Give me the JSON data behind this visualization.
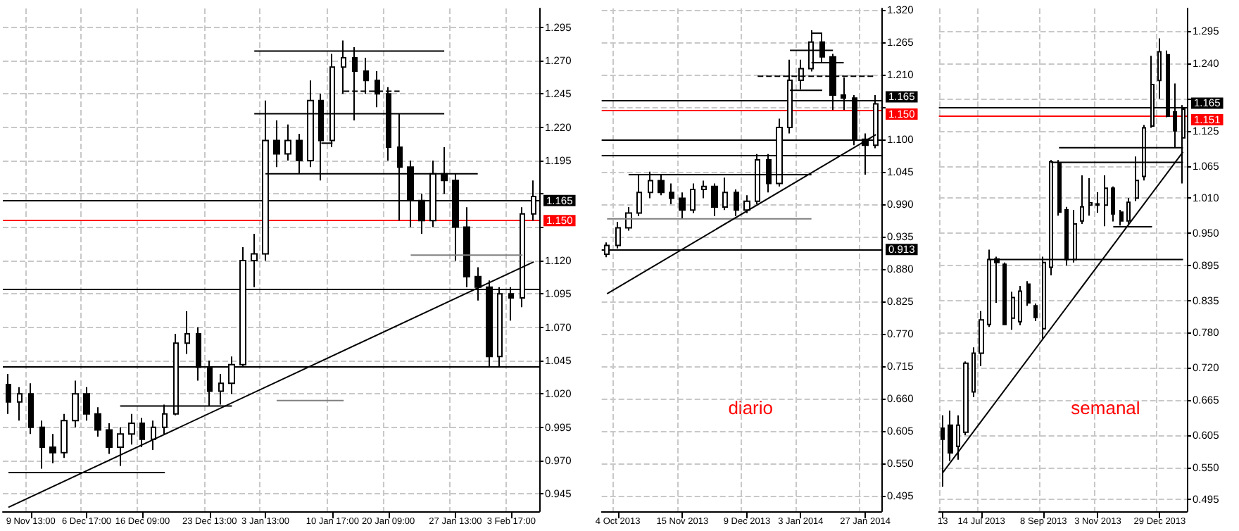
{
  "chart_data": [
    {
      "type": "candlestick",
      "categories": [
        null,
        null,
        "9 Nov 13:00",
        null,
        null,
        null,
        null,
        "6 Dec 17:00",
        null,
        null,
        null,
        null,
        "16 Dec 09:00",
        null,
        null,
        null,
        null,
        null,
        "23 Dec 13:00",
        null,
        null,
        null,
        null,
        "3 Jan 13:00",
        null,
        null,
        null,
        null,
        null,
        "10 Jan 17:00",
        null,
        null,
        null,
        null,
        "20 Jan 09:00",
        null,
        null,
        null,
        null,
        null,
        "27 Jan 13:00",
        null,
        null,
        null,
        null,
        "3 Feb 17:00",
        null,
        null
      ],
      "ohlc": [
        [
          1.027,
          1.035,
          1.005,
          1.014
        ],
        [
          1.014,
          1.025,
          1.0,
          1.02
        ],
        [
          1.02,
          1.028,
          0.99,
          0.995
        ],
        [
          0.995,
          1.0,
          0.964,
          0.98
        ],
        [
          0.98,
          0.99,
          0.968,
          0.976
        ],
        [
          0.976,
          1.005,
          0.972,
          1.0
        ],
        [
          1.0,
          1.03,
          0.995,
          1.02
        ],
        [
          1.02,
          1.025,
          1.0,
          1.005
        ],
        [
          1.005,
          1.01,
          0.988,
          0.993
        ],
        [
          0.993,
          0.998,
          0.975,
          0.98
        ],
        [
          0.98,
          0.995,
          0.966,
          0.99
        ],
        [
          0.99,
          1.005,
          0.982,
          0.998
        ],
        [
          0.998,
          1.002,
          0.98,
          0.986
        ],
        [
          0.986,
          1.0,
          0.978,
          0.995
        ],
        [
          0.995,
          1.012,
          0.99,
          1.005
        ],
        [
          1.005,
          1.065,
          1.004,
          1.058
        ],
        [
          1.058,
          1.082,
          1.05,
          1.065
        ],
        [
          1.065,
          1.07,
          1.03,
          1.04
        ],
        [
          1.04,
          1.045,
          1.011,
          1.022
        ],
        [
          1.022,
          1.035,
          1.012,
          1.028
        ],
        [
          1.028,
          1.048,
          1.02,
          1.042
        ],
        [
          1.042,
          1.13,
          1.04,
          1.12
        ],
        [
          1.12,
          1.14,
          1.1,
          1.125
        ],
        [
          1.125,
          1.24,
          1.12,
          1.21
        ],
        [
          1.21,
          1.225,
          1.19,
          1.2
        ],
        [
          1.2,
          1.222,
          1.195,
          1.21
        ],
        [
          1.21,
          1.215,
          1.185,
          1.195
        ],
        [
          1.195,
          1.255,
          1.19,
          1.24
        ],
        [
          1.24,
          1.245,
          1.18,
          1.21
        ],
        [
          1.21,
          1.275,
          1.205,
          1.265
        ],
        [
          1.265,
          1.285,
          1.245,
          1.272
        ],
        [
          1.272,
          1.28,
          1.225,
          1.262
        ],
        [
          1.262,
          1.272,
          1.245,
          1.255
        ],
        [
          1.255,
          1.262,
          1.235,
          1.245
        ],
        [
          1.245,
          1.25,
          1.195,
          1.205
        ],
        [
          1.205,
          1.23,
          1.15,
          1.19
        ],
        [
          1.19,
          1.195,
          1.145,
          1.165
        ],
        [
          1.165,
          1.17,
          1.14,
          1.15
        ],
        [
          1.15,
          1.195,
          1.145,
          1.185
        ],
        [
          1.185,
          1.205,
          1.17,
          1.18
        ],
        [
          1.18,
          1.185,
          1.12,
          1.145
        ],
        [
          1.145,
          1.16,
          1.1,
          1.108
        ],
        [
          1.108,
          1.115,
          1.09,
          1.1
        ],
        [
          1.1,
          1.105,
          1.04,
          1.048
        ],
        [
          1.048,
          1.1,
          1.04,
          1.095
        ],
        [
          1.095,
          1.1,
          1.075,
          1.092
        ],
        [
          1.092,
          1.16,
          1.085,
          1.155
        ],
        [
          1.155,
          1.18,
          1.15,
          1.168
        ]
      ],
      "series": [
        {
          "type": "line",
          "color": "#000000",
          "values": [
            null,
            null,
            null,
            null,
            null,
            null,
            null,
            null,
            null,
            null,
            null,
            null,
            null,
            null,
            null,
            null,
            null,
            null,
            null,
            null,
            null,
            null,
            1.277,
            1.277,
            1.277,
            1.277,
            1.277,
            1.277,
            1.277,
            1.277,
            1.277,
            1.277,
            1.277,
            1.277,
            1.277,
            1.277,
            1.277,
            1.277,
            1.277,
            1.277,
            null,
            null,
            null,
            null,
            null,
            null,
            null,
            null
          ]
        },
        {
          "type": "line",
          "color": "#000000",
          "values": [
            null,
            null,
            null,
            null,
            null,
            null,
            null,
            null,
            null,
            null,
            null,
            null,
            null,
            null,
            null,
            null,
            null,
            null,
            null,
            null,
            null,
            null,
            1.23,
            1.23,
            1.23,
            1.23,
            1.23,
            1.23,
            1.23,
            1.23,
            1.23,
            1.23,
            1.23,
            1.23,
            1.23,
            1.23,
            1.23,
            1.23,
            1.23,
            1.23,
            null,
            null,
            null,
            null,
            null,
            null,
            null,
            null
          ]
        },
        {
          "type": "line",
          "color": "#000000",
          "values": [
            null,
            null,
            null,
            null,
            null,
            null,
            null,
            null,
            null,
            null,
            null,
            null,
            null,
            null,
            null,
            null,
            null,
            null,
            null,
            null,
            null,
            null,
            null,
            1.185,
            1.185,
            1.185,
            1.185,
            1.185,
            1.185,
            1.185,
            1.185,
            1.185,
            1.185,
            1.185,
            1.185,
            1.185,
            1.185,
            1.185,
            1.185,
            1.185,
            1.185,
            1.185,
            1.185,
            null,
            null,
            null,
            null,
            null
          ]
        },
        {
          "type": "line",
          "color": "#808080",
          "values": [
            null,
            null,
            null,
            null,
            null,
            null,
            null,
            null,
            null,
            null,
            null,
            null,
            null,
            null,
            null,
            null,
            null,
            null,
            null,
            null,
            null,
            null,
            null,
            null,
            null,
            null,
            null,
            null,
            null,
            null,
            null,
            null,
            null,
            null,
            null,
            null,
            1.124,
            1.124,
            1.124,
            1.124,
            1.124,
            1.124,
            1.124,
            1.124,
            1.124,
            1.124,
            1.124,
            null
          ]
        },
        {
          "type": "line",
          "color": "#000000",
          "values": [
            null,
            null,
            null,
            null,
            null,
            null,
            null,
            null,
            null,
            null,
            1.011,
            1.011,
            1.011,
            1.011,
            1.011,
            1.011,
            1.011,
            1.011,
            1.011,
            1.011,
            1.011,
            null,
            null,
            null,
            null,
            null,
            null,
            null,
            null,
            null,
            null,
            null,
            null,
            null,
            null,
            null,
            null,
            null,
            null,
            null,
            null,
            null,
            null,
            null,
            null,
            null,
            null,
            null
          ]
        },
        {
          "type": "line",
          "color": "#000000",
          "values": [
            0.961,
            0.961,
            0.961,
            0.961,
            0.961,
            0.961,
            0.961,
            0.961,
            0.961,
            0.961,
            0.961,
            0.961,
            0.961,
            0.961,
            0.961,
            null,
            null,
            null,
            null,
            null,
            null,
            null,
            null,
            null,
            null,
            null,
            null,
            null,
            null,
            null,
            null,
            null,
            null,
            null,
            null,
            null,
            null,
            null,
            null,
            null,
            null,
            null,
            null,
            null,
            null,
            null,
            null,
            null
          ]
        },
        {
          "type": "line",
          "color": "#808080",
          "values": [
            null,
            null,
            null,
            null,
            null,
            null,
            null,
            null,
            null,
            null,
            null,
            null,
            null,
            null,
            null,
            null,
            null,
            null,
            null,
            null,
            null,
            null,
            null,
            null,
            1.015,
            1.015,
            1.015,
            1.015,
            1.015,
            1.015,
            1.015,
            null,
            null,
            null,
            null,
            null,
            null,
            null,
            null,
            null,
            null,
            null,
            null,
            null,
            null,
            null,
            null,
            null
          ]
        },
        {
          "type": "line",
          "color": "#000000",
          "line_style": "dashed",
          "values": [
            null,
            null,
            null,
            null,
            null,
            null,
            null,
            null,
            null,
            null,
            null,
            null,
            null,
            null,
            null,
            null,
            null,
            null,
            null,
            null,
            null,
            null,
            null,
            null,
            null,
            null,
            null,
            null,
            null,
            null,
            1.247,
            1.247,
            1.247,
            1.247,
            1.247,
            1.247,
            null,
            null,
            null,
            null,
            null,
            null,
            null,
            null,
            null,
            null,
            null,
            null
          ]
        },
        {
          "type": "line",
          "color": "#000000",
          "values": [
            null,
            null,
            null,
            null,
            null,
            null,
            null,
            null,
            null,
            null,
            null,
            null,
            null,
            null,
            null,
            null,
            null,
            null,
            null,
            null,
            null,
            null,
            null,
            null,
            null,
            null,
            null,
            null,
            1.208,
            1.208,
            null,
            null,
            null,
            null,
            null,
            null,
            null,
            null,
            null,
            null,
            null,
            null,
            null,
            null,
            null,
            null,
            null,
            null
          ]
        },
        {
          "type": "line",
          "color": "#000000",
          "values": [
            0.935,
            null,
            null,
            null,
            null,
            null,
            null,
            null,
            null,
            null,
            null,
            null,
            null,
            null,
            null,
            null,
            null,
            null,
            null,
            null,
            null,
            null,
            null,
            null,
            null,
            null,
            null,
            null,
            null,
            null,
            null,
            null,
            null,
            null,
            null,
            null,
            null,
            null,
            null,
            null,
            null,
            null,
            null,
            null,
            null,
            null,
            null,
            1.119
          ]
        }
      ],
      "ref_lines": [
        {
          "axis": "y",
          "value": 1.165,
          "label": "1.165",
          "color": "#000000"
        },
        {
          "axis": "y",
          "value": 1.15,
          "label": "1.150",
          "color": "#ff0000"
        },
        {
          "axis": "y",
          "value": 1.099,
          "label": null,
          "color": "#000000"
        },
        {
          "axis": "y",
          "value": 1.041,
          "label": null,
          "color": "#000000"
        }
      ],
      "ylim": [
        0.932,
        1.309
      ],
      "yticks": [
        0.945,
        {
          "value": 0.97,
          "label": "0.970"
        },
        0.995,
        {
          "value": 1.02,
          "label": "1.020"
        },
        1.045,
        {
          "value": 1.07,
          "label": "1.070"
        },
        1.095,
        {
          "value": 1.12,
          "label": "1.120"
        },
        {
          "value": 1.145,
          "label": null
        },
        {
          "value": 1.17,
          "label": null
        },
        1.195,
        {
          "value": 1.22,
          "label": "1.220"
        },
        1.245,
        {
          "value": 1.27,
          "label": "1.270"
        },
        1.295
      ],
      "grid": true
    },
    {
      "type": "candlestick",
      "categories": [
        null,
        "4 Oct 2013",
        null,
        null,
        null,
        null,
        null,
        "15 Nov 2013",
        null,
        null,
        null,
        null,
        null,
        "9 Dec 2013",
        null,
        null,
        null,
        null,
        "3 Jan 2014",
        null,
        null,
        null,
        null,
        null,
        "27 Jan 2014",
        null
      ],
      "ohlc": [
        [
          0.905,
          0.925,
          0.9,
          0.92
        ],
        [
          0.92,
          0.96,
          0.915,
          0.95
        ],
        [
          0.95,
          0.985,
          0.945,
          0.975
        ],
        [
          0.975,
          1.04,
          0.97,
          1.01
        ],
        [
          1.01,
          1.045,
          1.0,
          1.03
        ],
        [
          1.03,
          1.04,
          1.005,
          1.01
        ],
        [
          1.01,
          1.025,
          0.99,
          1.0
        ],
        [
          1.0,
          1.01,
          0.965,
          0.98
        ],
        [
          0.98,
          1.025,
          0.975,
          1.015
        ],
        [
          1.015,
          1.03,
          1.0,
          1.02
        ],
        [
          1.02,
          1.025,
          0.97,
          0.985
        ],
        [
          0.985,
          1.035,
          0.98,
          1.01
        ],
        [
          1.01,
          1.015,
          0.97,
          0.98
        ],
        [
          0.98,
          1.005,
          0.975,
          0.995
        ],
        [
          0.995,
          1.075,
          0.99,
          1.065
        ],
        [
          1.065,
          1.075,
          1.01,
          1.025
        ],
        [
          1.025,
          1.135,
          1.02,
          1.12
        ],
        [
          1.12,
          1.235,
          1.11,
          1.2
        ],
        [
          1.2,
          1.235,
          1.185,
          1.22
        ],
        [
          1.22,
          1.285,
          1.215,
          1.265
        ],
        [
          1.265,
          1.28,
          1.23,
          1.24
        ],
        [
          1.24,
          1.245,
          1.15,
          1.175
        ],
        [
          1.175,
          1.205,
          1.15,
          1.17
        ],
        [
          1.17,
          1.175,
          1.09,
          1.1
        ],
        [
          1.1,
          1.11,
          1.04,
          1.09
        ],
        [
          1.09,
          1.175,
          1.085,
          1.16
        ]
      ],
      "series": [
        {
          "type": "line",
          "color": "#000000",
          "values": [
            null,
            null,
            1.04,
            1.04,
            1.04,
            1.04,
            1.04,
            1.04,
            1.04,
            1.04,
            1.04,
            1.04,
            1.04,
            1.04,
            1.04,
            1.04,
            1.04,
            1.04,
            1.04,
            1.04,
            null,
            null,
            null,
            null,
            null,
            null
          ]
        },
        {
          "type": "line",
          "color": "#808080",
          "values": [
            0.965,
            0.965,
            0.965,
            0.965,
            0.965,
            0.965,
            0.965,
            0.965,
            0.965,
            0.965,
            0.965,
            0.965,
            0.965,
            0.965,
            0.965,
            0.965,
            0.965,
            0.965,
            0.965,
            0.965,
            null,
            null,
            null,
            null,
            null,
            null
          ]
        },
        {
          "type": "line",
          "color": "#000000",
          "values": [
            null,
            null,
            null,
            null,
            null,
            null,
            null,
            null,
            null,
            null,
            null,
            null,
            null,
            null,
            null,
            null,
            null,
            1.251,
            1.251,
            1.251,
            1.251,
            1.251,
            null,
            null,
            null,
            null
          ]
        },
        {
          "type": "line",
          "color": "#000000",
          "values": [
            null,
            null,
            null,
            null,
            null,
            null,
            null,
            null,
            null,
            null,
            null,
            null,
            null,
            null,
            null,
            null,
            null,
            null,
            null,
            1.28,
            1.28,
            null,
            null,
            null,
            null,
            null
          ]
        },
        {
          "type": "line",
          "color": "#000000",
          "values": [
            null,
            null,
            null,
            null,
            null,
            null,
            null,
            null,
            null,
            null,
            null,
            null,
            null,
            null,
            null,
            null,
            null,
            null,
            null,
            1.23,
            1.23,
            1.23,
            1.23,
            null,
            null,
            null
          ]
        },
        {
          "type": "line",
          "color": "#000000",
          "line_style": "dashed",
          "values": [
            null,
            null,
            null,
            null,
            null,
            null,
            null,
            null,
            null,
            null,
            null,
            null,
            null,
            null,
            1.207,
            1.207,
            1.207,
            1.207,
            1.207,
            1.207,
            1.207,
            1.207,
            1.207,
            1.207,
            1.207,
            1.207
          ]
        },
        {
          "type": "line",
          "color": "#000000",
          "values": [
            null,
            null,
            null,
            null,
            null,
            null,
            null,
            null,
            null,
            null,
            null,
            null,
            null,
            null,
            null,
            null,
            null,
            1.183,
            1.183,
            1.183,
            1.183,
            null,
            null,
            null,
            null,
            null
          ]
        },
        {
          "type": "line",
          "color": "#000000",
          "values": [
            0.838,
            null,
            null,
            null,
            null,
            null,
            null,
            null,
            null,
            null,
            null,
            null,
            null,
            null,
            null,
            null,
            null,
            null,
            null,
            null,
            null,
            null,
            null,
            null,
            null,
            1.108
          ]
        }
      ],
      "ref_lines": [
        {
          "axis": "y",
          "value": 1.165,
          "label": "1.165",
          "color": "#000000"
        },
        {
          "axis": "y",
          "value": 1.15,
          "label": "1.150",
          "color": "#ff0000"
        },
        {
          "axis": "y",
          "value": 0.913,
          "label": "0.913",
          "color": "#000000"
        },
        {
          "axis": "y",
          "value": 1.099,
          "label": null,
          "color": "#000000"
        },
        {
          "axis": "y",
          "value": 1.073,
          "label": null,
          "color": "#000000"
        }
      ],
      "ylim": [
        0.469,
        1.322
      ],
      "yticks": [
        0.495,
        {
          "value": 0.55,
          "label": "0.550"
        },
        0.605,
        {
          "value": 0.66,
          "label": "0.660"
        },
        0.715,
        {
          "value": 0.77,
          "label": "0.770"
        },
        0.825,
        {
          "value": 0.88,
          "label": "0.880"
        },
        0.935,
        {
          "value": 0.99,
          "label": "0.990"
        },
        1.045,
        {
          "value": 1.1,
          "label": "1.100"
        },
        {
          "value": 1.155,
          "label": null
        },
        {
          "value": 1.21,
          "label": "1.210"
        },
        1.265,
        {
          "value": 1.32,
          "label": "1.320"
        }
      ],
      "grid": true,
      "annotations": [
        "diario"
      ]
    },
    {
      "type": "candlestick",
      "categories": [
        "13",
        null,
        null,
        null,
        null,
        "14 Jul 2013",
        null,
        null,
        null,
        null,
        null,
        null,
        null,
        "8 Sep 2013",
        null,
        null,
        null,
        null,
        null,
        null,
        "3 Nov 2013",
        null,
        null,
        null,
        null,
        null,
        null,
        null,
        "29 Dec 2013",
        null,
        null,
        null
      ],
      "ohlc": [
        [
          0.617,
          0.639,
          0.517,
          0.598
        ],
        [
          0.622,
          0.647,
          0.561,
          0.575
        ],
        [
          0.586,
          0.639,
          0.563,
          0.622
        ],
        [
          0.61,
          0.731,
          0.605,
          0.728
        ],
        [
          0.679,
          0.755,
          0.67,
          0.745
        ],
        [
          0.745,
          0.817,
          0.723,
          0.802
        ],
        [
          0.794,
          0.922,
          0.79,
          0.905
        ],
        [
          0.906,
          0.91,
          0.831,
          0.9
        ],
        [
          0.897,
          0.9,
          0.794,
          0.794
        ],
        [
          0.805,
          0.85,
          0.785,
          0.84
        ],
        [
          0.799,
          0.86,
          0.793,
          0.851
        ],
        [
          0.863,
          0.868,
          0.826,
          0.831
        ],
        [
          0.826,
          0.83,
          0.8,
          0.806
        ],
        [
          0.787,
          0.91,
          0.77,
          0.9
        ],
        [
          0.892,
          1.075,
          0.878,
          1.072
        ],
        [
          1.069,
          1.075,
          0.98,
          0.986
        ],
        [
          0.99,
          0.995,
          0.895,
          0.905
        ],
        [
          0.905,
          0.99,
          0.9,
          0.966
        ],
        [
          0.971,
          1.049,
          0.966,
          0.995
        ],
        [
          0.998,
          1.044,
          0.98,
          1.002
        ],
        [
          1.0,
          1.02,
          0.985,
          0.998
        ],
        [
          0.998,
          1.049,
          0.962,
          1.027
        ],
        [
          1.027,
          1.03,
          0.97,
          0.983
        ],
        [
          0.986,
          0.99,
          0.963,
          0.971
        ],
        [
          0.971,
          1.01,
          0.963,
          1.003
        ],
        [
          1.01,
          1.081,
          1.005,
          1.04
        ],
        [
          1.047,
          1.135,
          1.04,
          1.13
        ],
        [
          1.133,
          1.253,
          1.13,
          1.204
        ],
        [
          1.211,
          1.283,
          1.18,
          1.26
        ],
        [
          1.255,
          1.262,
          1.148,
          1.15
        ],
        [
          1.157,
          1.206,
          1.096,
          1.125
        ],
        [
          1.113,
          1.169,
          1.035,
          1.162
        ]
      ],
      "series": [
        {
          "type": "line",
          "color": "#000000",
          "values": [
            null,
            null,
            null,
            null,
            null,
            null,
            null,
            null,
            null,
            null,
            null,
            null,
            null,
            null,
            null,
            1.096,
            1.096,
            1.096,
            1.096,
            1.096,
            1.096,
            1.096,
            1.096,
            1.096,
            1.096,
            1.096,
            1.096,
            1.096,
            1.096,
            1.096,
            1.096,
            1.096
          ]
        },
        {
          "type": "line",
          "color": "#000000",
          "values": [
            null,
            null,
            null,
            null,
            null,
            null,
            null,
            null,
            null,
            null,
            null,
            null,
            null,
            null,
            1.071,
            1.071,
            1.071,
            1.071,
            1.071,
            1.071,
            1.071,
            1.071,
            1.071,
            1.071,
            1.071,
            1.071,
            1.071,
            1.071,
            1.071,
            1.071,
            1.071,
            1.071
          ]
        },
        {
          "type": "line",
          "color": "#000000",
          "values": [
            null,
            null,
            null,
            null,
            null,
            null,
            0.905,
            0.905,
            0.905,
            0.905,
            0.905,
            0.905,
            0.905,
            0.905,
            0.905,
            0.905,
            0.905,
            0.905,
            0.905,
            0.905,
            0.905,
            0.905,
            0.905,
            0.905,
            0.905,
            0.905,
            0.905,
            0.905,
            0.905,
            0.905,
            0.905,
            0.905
          ]
        },
        {
          "type": "line",
          "color": "#000000",
          "values": [
            null,
            null,
            null,
            null,
            null,
            null,
            null,
            null,
            null,
            null,
            null,
            null,
            null,
            null,
            null,
            null,
            null,
            null,
            null,
            null,
            null,
            null,
            0.961,
            0.961,
            0.961,
            0.961,
            0.961,
            0.961,
            null,
            null,
            null,
            null
          ]
        },
        {
          "type": "line",
          "color": "#000000",
          "values": [
            0.541,
            null,
            null,
            null,
            null,
            null,
            null,
            null,
            null,
            null,
            null,
            null,
            null,
            null,
            null,
            null,
            null,
            null,
            null,
            null,
            null,
            null,
            null,
            null,
            null,
            null,
            null,
            null,
            null,
            null,
            null,
            1.089
          ]
        }
      ],
      "ref_lines": [
        {
          "axis": "y",
          "value": 1.165,
          "label": "1.165",
          "color": "#000000"
        },
        {
          "axis": "y",
          "value": 1.151,
          "label": "1.151",
          "color": "#ff0000"
        }
      ],
      "ylim": [
        0.475,
        1.334
      ],
      "yticks": [
        0.495,
        {
          "value": 0.55,
          "label": "0.550"
        },
        0.605,
        0.665,
        {
          "value": 0.72,
          "label": "0.720"
        },
        {
          "value": 0.78,
          "label": "0.780"
        },
        0.835,
        0.895,
        {
          "value": 0.95,
          "label": "0.950"
        },
        {
          "value": 1.01,
          "label": "1.010"
        },
        1.065,
        1.125,
        {
          "value": 1.18,
          "label": null
        },
        {
          "value": 1.24,
          "label": "1.240"
        },
        1.295
      ],
      "grid": true,
      "annotations": [
        "semanal"
      ]
    }
  ]
}
